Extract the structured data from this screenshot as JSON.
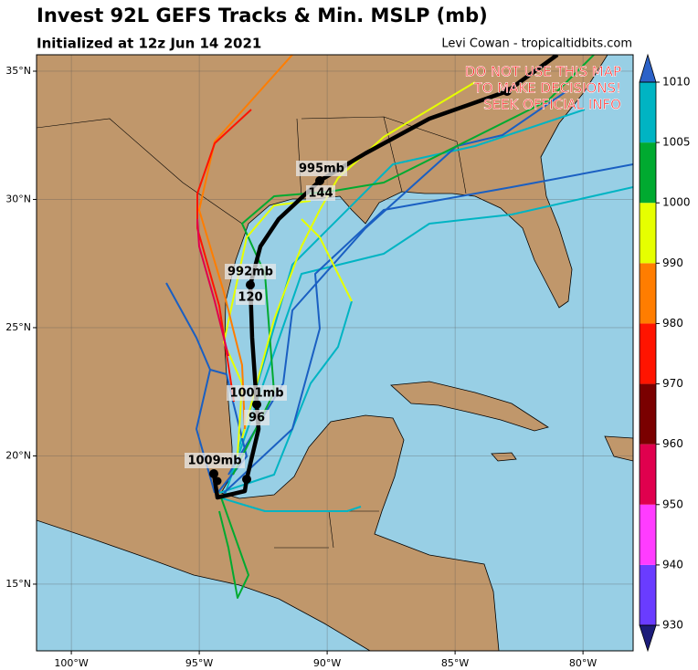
{
  "title": "Invest 92L GEFS Tracks & Min. MSLP (mb)",
  "subtitle": "Initialized at 12z Jun 14 2021",
  "credit": "Levi Cowan - tropicaltidbits.com",
  "warning": [
    "DO NOT USE THIS MAP",
    "TO MAKE DECISIONS!",
    "SEEK OFFICIAL INFO"
  ],
  "map": {
    "lon_range": [
      -101.36,
      -78.04
    ],
    "lat_range": [
      12.4,
      35.64
    ],
    "lat_ticks": [
      {
        "value": 15,
        "label": "15°N"
      },
      {
        "value": 20,
        "label": "20°N"
      },
      {
        "value": 25,
        "label": "25°N"
      },
      {
        "value": 30,
        "label": "30°N"
      },
      {
        "value": 35,
        "label": "35°N"
      }
    ],
    "lon_ticks": [
      {
        "value": -100,
        "label": "100°W"
      },
      {
        "value": -95,
        "label": "95°W"
      },
      {
        "value": -90,
        "label": "90°W"
      },
      {
        "value": -85,
        "label": "85°W"
      },
      {
        "value": -80,
        "label": "80°W"
      }
    ]
  },
  "track_labels": [
    {
      "pressure": "995mb",
      "hour": "144"
    },
    {
      "pressure": "992mb",
      "hour": "120"
    },
    {
      "pressure": "1001mb",
      "hour": "96"
    },
    {
      "pressure": "1009mb"
    }
  ],
  "colorbar": {
    "ticks": [
      930,
      940,
      950,
      960,
      970,
      980,
      990,
      1000,
      1005,
      1010
    ],
    "colors": [
      "#6a3cff",
      "#ff3cff",
      "#e0004e",
      "#7a0000",
      "#ff1400",
      "#ff7d00",
      "#e6ff00",
      "#00aa30",
      "#00b4c3"
    ],
    "extend_colors": {
      "below": "#1c1c7a",
      "above": "#2c62c8"
    }
  }
}
